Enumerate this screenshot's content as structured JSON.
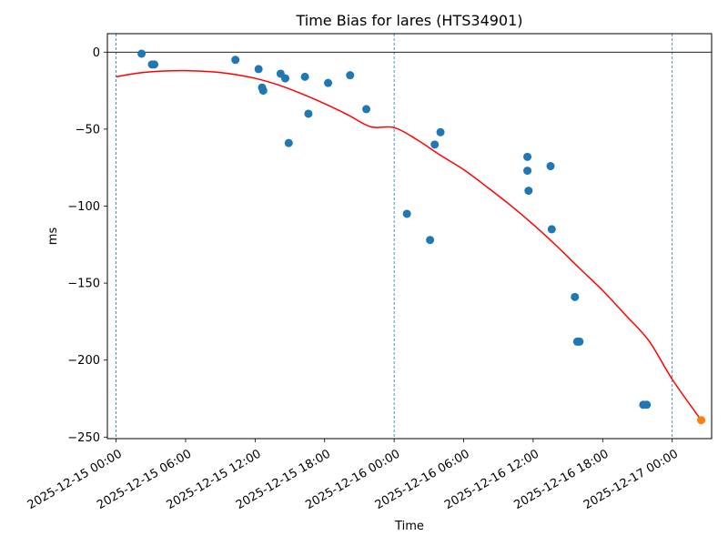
{
  "chart_data": {
    "type": "scatter",
    "title": "Time Bias for lares (HTS34901)",
    "xlabel": "Time",
    "ylabel": "ms",
    "x_tick_labels": [
      "2025-12-15 00:00",
      "2025-12-15 06:00",
      "2025-12-15 12:00",
      "2025-12-15 18:00",
      "2025-12-16 00:00",
      "2025-12-16 06:00",
      "2025-12-16 12:00",
      "2025-12-16 18:00",
      "2025-12-17 00:00"
    ],
    "x_ticks_hours": [
      0,
      6,
      12,
      18,
      24,
      30,
      36,
      42,
      48
    ],
    "xlim_hours": [
      -0.75,
      51.4
    ],
    "y_ticks": [
      0,
      -50,
      -100,
      -150,
      -200,
      -250
    ],
    "y_tick_labels": [
      "0",
      "−50",
      "−100",
      "−150",
      "−200",
      "−250"
    ],
    "ylim": [
      -251,
      12
    ],
    "vertical_lines_hours": [
      0,
      24,
      48
    ],
    "horizontal_line_y": 0,
    "colors": {
      "points": "#1f77b4",
      "fit": "#ff0000",
      "prediction": "#ff7f0e",
      "guides": "#1f77b4"
    },
    "series": [
      {
        "kind": "observations",
        "points": [
          {
            "x": 2.2,
            "y": -1
          },
          {
            "x": 3.1,
            "y": -8
          },
          {
            "x": 3.3,
            "y": -8
          },
          {
            "x": 10.3,
            "y": -5
          },
          {
            "x": 12.3,
            "y": -11
          },
          {
            "x": 12.6,
            "y": -23
          },
          {
            "x": 12.7,
            "y": -25
          },
          {
            "x": 14.2,
            "y": -14
          },
          {
            "x": 14.6,
            "y": -17
          },
          {
            "x": 14.9,
            "y": -59
          },
          {
            "x": 16.3,
            "y": -16
          },
          {
            "x": 16.6,
            "y": -40
          },
          {
            "x": 18.3,
            "y": -20
          },
          {
            "x": 20.2,
            "y": -15
          },
          {
            "x": 21.6,
            "y": -37
          },
          {
            "x": 25.1,
            "y": -105
          },
          {
            "x": 27.1,
            "y": -122
          },
          {
            "x": 27.5,
            "y": -60
          },
          {
            "x": 28.0,
            "y": -52
          },
          {
            "x": 35.5,
            "y": -68
          },
          {
            "x": 35.5,
            "y": -77
          },
          {
            "x": 35.6,
            "y": -90
          },
          {
            "x": 37.5,
            "y": -74
          },
          {
            "x": 37.6,
            "y": -115
          },
          {
            "x": 39.6,
            "y": -159
          },
          {
            "x": 39.8,
            "y": -188
          },
          {
            "x": 40.0,
            "y": -188
          },
          {
            "x": 45.5,
            "y": -229
          },
          {
            "x": 45.8,
            "y": -229
          }
        ]
      },
      {
        "kind": "prediction",
        "points": [
          {
            "x": 50.5,
            "y": -239
          }
        ]
      },
      {
        "kind": "fit",
        "curve": [
          {
            "x": 0,
            "y": -16
          },
          {
            "x": 2,
            "y": -13.5
          },
          {
            "x": 4,
            "y": -12.3
          },
          {
            "x": 6,
            "y": -12
          },
          {
            "x": 8,
            "y": -12.6
          },
          {
            "x": 10,
            "y": -14.2
          },
          {
            "x": 12,
            "y": -17
          },
          {
            "x": 14,
            "y": -21.3
          },
          {
            "x": 16,
            "y": -27
          },
          {
            "x": 18,
            "y": -33.5
          },
          {
            "x": 20,
            "y": -40.7
          },
          {
            "x": 22,
            "y": -48.5
          },
          {
            "x": 24,
            "y": -49
          },
          {
            "x": 26,
            "y": -57
          },
          {
            "x": 28,
            "y": -67
          },
          {
            "x": 30,
            "y": -76.3
          },
          {
            "x": 32,
            "y": -87.5
          },
          {
            "x": 34,
            "y": -99.2
          },
          {
            "x": 36,
            "y": -111.9
          },
          {
            "x": 38,
            "y": -125.7
          },
          {
            "x": 40,
            "y": -140.4
          },
          {
            "x": 42,
            "y": -154.8
          },
          {
            "x": 44,
            "y": -171
          },
          {
            "x": 46,
            "y": -187.6
          },
          {
            "x": 48,
            "y": -212.5
          },
          {
            "x": 50.5,
            "y": -239
          }
        ]
      }
    ]
  }
}
